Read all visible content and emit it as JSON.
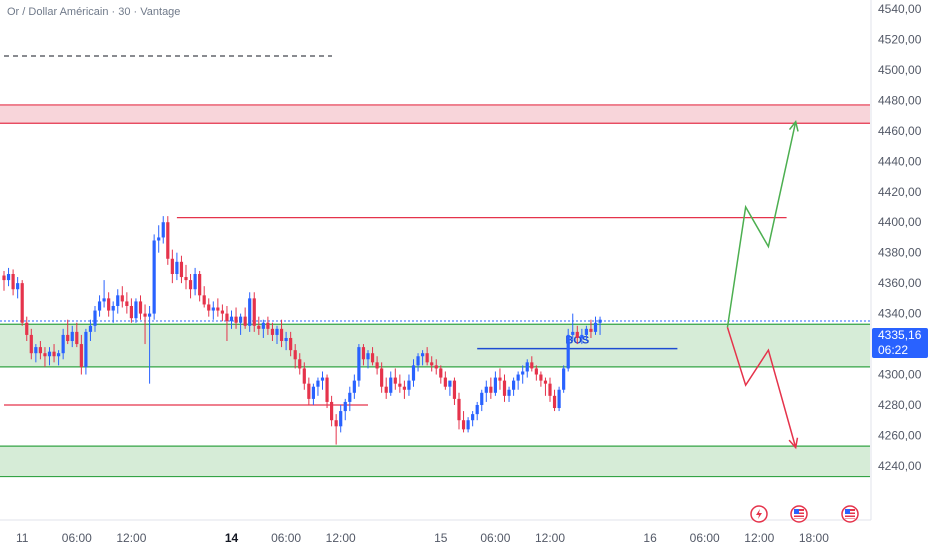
{
  "header": {
    "title": "Or / Dollar Américain · 30 · Vantage"
  },
  "price_tag": {
    "price": "4335,16",
    "countdown": "06:22"
  },
  "colors": {
    "bull": "#2962ff",
    "bear": "#e5334b",
    "demand_zone": "#d6ecd7",
    "demand_line": "#33a345",
    "supply_zone": "#f8d5da",
    "supply_line": "#e5334b",
    "projection_up": "#4caf50",
    "projection_down": "#e5334b"
  },
  "chart_data": {
    "type": "candlestick",
    "symbol": "Or / Dollar Américain",
    "timeframe": "30",
    "broker": "Vantage",
    "y_ticks": [
      "4540,00",
      "4520,00",
      "4500,00",
      "4480,00",
      "4460,00",
      "4440,00",
      "4420,00",
      "4400,00",
      "4380,00",
      "4360,00",
      "4340,00",
      "4320,00",
      "4300,00",
      "4280,00",
      "4260,00",
      "4240,00"
    ],
    "y_tick_values": [
      4540,
      4520,
      4500,
      4480,
      4460,
      4440,
      4420,
      4400,
      4380,
      4360,
      4340,
      4320,
      4300,
      4280,
      4260,
      4240
    ],
    "x_ticks": [
      {
        "label": "11",
        "bold": false,
        "index": 4
      },
      {
        "label": "06:00",
        "bold": false,
        "index": 16
      },
      {
        "label": "12:00",
        "bold": false,
        "index": 28
      },
      {
        "label": "14",
        "bold": true,
        "index": 50
      },
      {
        "label": "06:00",
        "bold": false,
        "index": 62
      },
      {
        "label": "12:00",
        "bold": false,
        "index": 74
      },
      {
        "label": "15",
        "bold": false,
        "index": 96
      },
      {
        "label": "06:00",
        "bold": false,
        "index": 108
      },
      {
        "label": "12:00",
        "bold": false,
        "index": 120
      },
      {
        "label": "16",
        "bold": false,
        "index": 142
      },
      {
        "label": "06:00",
        "bold": false,
        "index": 154
      },
      {
        "label": "12:00",
        "bold": false,
        "index": 166
      },
      {
        "label": "18:00",
        "bold": false,
        "index": 178
      }
    ],
    "zones": [
      {
        "type": "supply",
        "from": 4465,
        "to": 4477
      },
      {
        "type": "demand",
        "from": 4305,
        "to": 4333
      },
      {
        "type": "demand",
        "from": 4233,
        "to": 4253
      }
    ],
    "levels": [
      {
        "price": 4403,
        "x_start_index": 38,
        "x_end_index": 172,
        "color": "#e5334b"
      },
      {
        "price": 4280,
        "x_start_index": 0,
        "x_end_index": 80,
        "color": "#e5334b"
      }
    ],
    "bos": {
      "label": "BOS",
      "price": 4317,
      "x_start_index": 104,
      "x_end_index": 148
    },
    "current_price": 4335.16,
    "projections": [
      {
        "direction": "up",
        "points": [
          [
            159,
            4331
          ],
          [
            163,
            4410
          ],
          [
            168,
            4384
          ],
          [
            174,
            4466
          ]
        ]
      },
      {
        "direction": "down",
        "points": [
          [
            159,
            4331
          ],
          [
            163,
            4293
          ],
          [
            168,
            4316
          ],
          [
            174,
            4252
          ]
        ]
      }
    ],
    "candles": [
      [
        4365,
        4368,
        4355,
        4362
      ],
      [
        4362,
        4370,
        4358,
        4366
      ],
      [
        4366,
        4369,
        4352,
        4356
      ],
      [
        4356,
        4364,
        4350,
        4360
      ],
      [
        4360,
        4362,
        4332,
        4334
      ],
      [
        4334,
        4338,
        4322,
        4326
      ],
      [
        4326,
        4330,
        4310,
        4314
      ],
      [
        4314,
        4320,
        4308,
        4318
      ],
      [
        4318,
        4322,
        4310,
        4314
      ],
      [
        4314,
        4318,
        4305,
        4312
      ],
      [
        4312,
        4318,
        4306,
        4315
      ],
      [
        4315,
        4320,
        4308,
        4312
      ],
      [
        4312,
        4316,
        4306,
        4314
      ],
      [
        4314,
        4330,
        4310,
        4326
      ],
      [
        4326,
        4336,
        4320,
        4322
      ],
      [
        4322,
        4332,
        4318,
        4328
      ],
      [
        4328,
        4334,
        4318,
        4320
      ],
      [
        4320,
        4326,
        4300,
        4305
      ],
      [
        4305,
        4330,
        4300,
        4328
      ],
      [
        4328,
        4336,
        4322,
        4332
      ],
      [
        4332,
        4345,
        4328,
        4342
      ],
      [
        4342,
        4352,
        4338,
        4348
      ],
      [
        4348,
        4362,
        4344,
        4350
      ],
      [
        4350,
        4354,
        4338,
        4342
      ],
      [
        4342,
        4348,
        4334,
        4345
      ],
      [
        4345,
        4356,
        4340,
        4352
      ],
      [
        4352,
        4358,
        4344,
        4348
      ],
      [
        4348,
        4354,
        4340,
        4345
      ],
      [
        4345,
        4350,
        4334,
        4337
      ],
      [
        4337,
        4350,
        4334,
        4348
      ],
      [
        4348,
        4352,
        4336,
        4340
      ],
      [
        4340,
        4346,
        4320,
        4338
      ],
      [
        4338,
        4345,
        4294,
        4340
      ],
      [
        4340,
        4392,
        4336,
        4388
      ],
      [
        4388,
        4398,
        4380,
        4390
      ],
      [
        4390,
        4404,
        4386,
        4400
      ],
      [
        4400,
        4404,
        4372,
        4376
      ],
      [
        4376,
        4382,
        4360,
        4366
      ],
      [
        4366,
        4380,
        4362,
        4374
      ],
      [
        4374,
        4378,
        4360,
        4364
      ],
      [
        4364,
        4372,
        4356,
        4362
      ],
      [
        4362,
        4366,
        4350,
        4356
      ],
      [
        4356,
        4370,
        4352,
        4366
      ],
      [
        4366,
        4368,
        4348,
        4352
      ],
      [
        4352,
        4358,
        4344,
        4346
      ],
      [
        4346,
        4350,
        4338,
        4342
      ],
      [
        4342,
        4348,
        4336,
        4344
      ],
      [
        4344,
        4350,
        4338,
        4342
      ],
      [
        4342,
        4346,
        4335,
        4340
      ],
      [
        4340,
        4345,
        4322,
        4335
      ],
      [
        4335,
        4342,
        4330,
        4338
      ],
      [
        4338,
        4344,
        4330,
        4334
      ],
      [
        4334,
        4340,
        4326,
        4338
      ],
      [
        4338,
        4344,
        4330,
        4332
      ],
      [
        4332,
        4354,
        4328,
        4350
      ],
      [
        4350,
        4354,
        4328,
        4332
      ],
      [
        4332,
        4338,
        4326,
        4330
      ],
      [
        4330,
        4336,
        4324,
        4334
      ],
      [
        4334,
        4338,
        4326,
        4330
      ],
      [
        4330,
        4334,
        4322,
        4326
      ],
      [
        4326,
        4332,
        4320,
        4330
      ],
      [
        4330,
        4336,
        4318,
        4322
      ],
      [
        4322,
        4328,
        4316,
        4324
      ],
      [
        4324,
        4328,
        4312,
        4316
      ],
      [
        4316,
        4320,
        4304,
        4310
      ],
      [
        4310,
        4314,
        4300,
        4304
      ],
      [
        4304,
        4308,
        4290,
        4294
      ],
      [
        4294,
        4298,
        4280,
        4284
      ],
      [
        4284,
        4294,
        4280,
        4292
      ],
      [
        4292,
        4298,
        4286,
        4296
      ],
      [
        4296,
        4302,
        4290,
        4298
      ],
      [
        4298,
        4300,
        4278,
        4282
      ],
      [
        4282,
        4286,
        4266,
        4270
      ],
      [
        4270,
        4274,
        4254,
        4266
      ],
      [
        4266,
        4280,
        4262,
        4276
      ],
      [
        4276,
        4284,
        4270,
        4282
      ],
      [
        4282,
        4292,
        4276,
        4288
      ],
      [
        4288,
        4300,
        4284,
        4296
      ],
      [
        4296,
        4320,
        4292,
        4318
      ],
      [
        4318,
        4320,
        4306,
        4310
      ],
      [
        4310,
        4316,
        4304,
        4314
      ],
      [
        4314,
        4318,
        4306,
        4308
      ],
      [
        4308,
        4312,
        4300,
        4304
      ],
      [
        4304,
        4308,
        4288,
        4292
      ],
      [
        4292,
        4298,
        4284,
        4288
      ],
      [
        4288,
        4302,
        4286,
        4298
      ],
      [
        4298,
        4304,
        4290,
        4294
      ],
      [
        4294,
        4300,
        4288,
        4292
      ],
      [
        4292,
        4296,
        4284,
        4290
      ],
      [
        4290,
        4300,
        4286,
        4296
      ],
      [
        4296,
        4310,
        4292,
        4306
      ],
      [
        4306,
        4314,
        4302,
        4312
      ],
      [
        4312,
        4316,
        4306,
        4314
      ],
      [
        4314,
        4318,
        4306,
        4308
      ],
      [
        4308,
        4312,
        4302,
        4306
      ],
      [
        4306,
        4310,
        4300,
        4304
      ],
      [
        4304,
        4306,
        4294,
        4298
      ],
      [
        4298,
        4302,
        4290,
        4292
      ],
      [
        4292,
        4296,
        4286,
        4296
      ],
      [
        4296,
        4298,
        4280,
        4284
      ],
      [
        4284,
        4288,
        4264,
        4270
      ],
      [
        4270,
        4276,
        4262,
        4264
      ],
      [
        4264,
        4272,
        4262,
        4270
      ],
      [
        4270,
        4276,
        4266,
        4274
      ],
      [
        4274,
        4282,
        4270,
        4280
      ],
      [
        4280,
        4290,
        4276,
        4288
      ],
      [
        4288,
        4296,
        4282,
        4292
      ],
      [
        4292,
        4298,
        4284,
        4288
      ],
      [
        4288,
        4302,
        4286,
        4298
      ],
      [
        4298,
        4304,
        4290,
        4296
      ],
      [
        4296,
        4300,
        4282,
        4286
      ],
      [
        4286,
        4292,
        4282,
        4290
      ],
      [
        4290,
        4298,
        4286,
        4296
      ],
      [
        4296,
        4302,
        4290,
        4300
      ],
      [
        4300,
        4306,
        4294,
        4302
      ],
      [
        4302,
        4310,
        4298,
        4308
      ],
      [
        4308,
        4312,
        4302,
        4304
      ],
      [
        4304,
        4306,
        4296,
        4300
      ],
      [
        4300,
        4302,
        4292,
        4296
      ],
      [
        4296,
        4298,
        4286,
        4294
      ],
      [
        4294,
        4298,
        4282,
        4286
      ],
      [
        4286,
        4290,
        4276,
        4278
      ],
      [
        4278,
        4292,
        4276,
        4290
      ],
      [
        4290,
        4306,
        4288,
        4304
      ],
      [
        4304,
        4330,
        4302,
        4326
      ],
      [
        4326,
        4340,
        4322,
        4328
      ],
      [
        4328,
        4332,
        4320,
        4324
      ],
      [
        4324,
        4330,
        4320,
        4326
      ],
      [
        4326,
        4332,
        4322,
        4330
      ],
      [
        4330,
        4336,
        4324,
        4328
      ],
      [
        4328,
        4338,
        4326,
        4334
      ],
      [
        4334,
        4338,
        4326,
        4336
      ]
    ]
  }
}
